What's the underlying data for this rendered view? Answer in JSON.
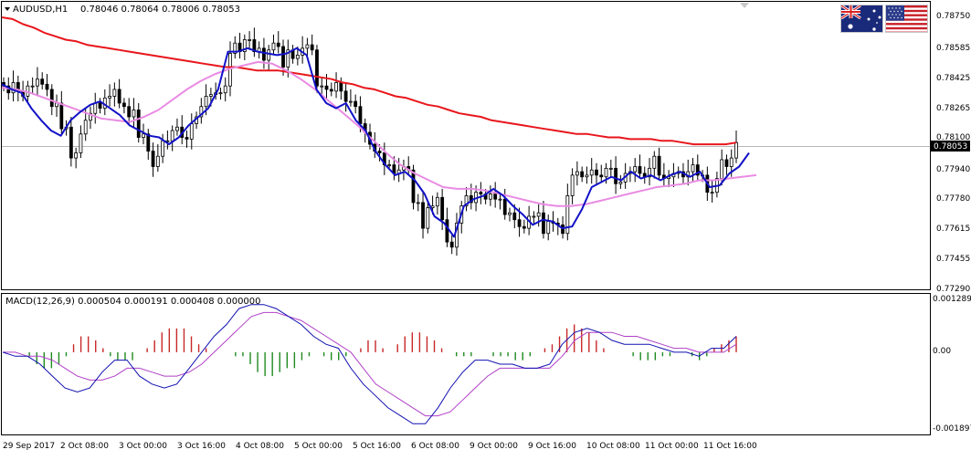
{
  "header": {
    "symbol_label": "AUDUSD,H1",
    "ohlc_text": "0.78046 0.78064 0.78006 0.78053",
    "macd_label": "MACD(12,26,9) 0.000504 0.000191 0.000408 0.000000"
  },
  "colors": {
    "ma_slow": "#e8161c",
    "ma_mid": "#e98be3",
    "ma_fast": "#1111c8",
    "candles": "#000000",
    "macd_line": "#1010b0",
    "signal_line": "#b040c8",
    "hist_pos": "#c82828",
    "hist_neg": "#1f8a1f"
  },
  "icons": {
    "flag_left": "australia-flag-icon",
    "flag_right": "usa-flag-icon"
  },
  "chart_data": [
    {
      "type": "candlestick",
      "title": "AUDUSD,H1",
      "y_ticks": [
        "0.78750",
        "0.78585",
        "0.78425",
        "0.78265",
        "0.78100",
        "0.77940",
        "0.77780",
        "0.77615",
        "0.77455",
        "0.77290"
      ],
      "ylim": [
        0.7721,
        0.7886
      ],
      "current_price": "0.78053",
      "x_labels": [
        "29 Sep 2017",
        "2 Oct 08:00",
        "3 Oct 00:00",
        "3 Oct 16:00",
        "4 Oct 08:00",
        "5 Oct 00:00",
        "5 Oct 16:00",
        "6 Oct 08:00",
        "9 Oct 00:00",
        "9 Oct 16:00",
        "10 Oct 08:00",
        "11 Oct 00:00",
        "11 Oct 16:00"
      ],
      "closes": [
        0.7838,
        0.7834,
        0.784,
        0.7835,
        0.7832,
        0.7838,
        0.7838,
        0.7842,
        0.7839,
        0.7836,
        0.7826,
        0.7828,
        0.7813,
        0.7814,
        0.7796,
        0.7799,
        0.781,
        0.7818,
        0.7822,
        0.7828,
        0.7825,
        0.7831,
        0.7832,
        0.7836,
        0.7828,
        0.7826,
        0.782,
        0.7824,
        0.7808,
        0.781,
        0.78,
        0.7791,
        0.7797,
        0.7806,
        0.7806,
        0.7812,
        0.7814,
        0.7808,
        0.7807,
        0.7816,
        0.782,
        0.7826,
        0.7832,
        0.7833,
        0.7834,
        0.7834,
        0.7838,
        0.7857,
        0.7863,
        0.7858,
        0.7865,
        0.7865,
        0.7858,
        0.786,
        0.7853,
        0.7859,
        0.7863,
        0.7861,
        0.7849,
        0.7859,
        0.7854,
        0.7856,
        0.786,
        0.7862,
        0.7859,
        0.7838,
        0.7838,
        0.7836,
        0.7835,
        0.784,
        0.7835,
        0.7829,
        0.7829,
        0.7826,
        0.7816,
        0.7811,
        0.7804,
        0.78,
        0.7799,
        0.7792,
        0.7792,
        0.7787,
        0.7789,
        0.7791,
        0.7789,
        0.777,
        0.777,
        0.7755,
        0.7767,
        0.7768,
        0.7773,
        0.776,
        0.7747,
        0.7744,
        0.7758,
        0.7768,
        0.7774,
        0.777,
        0.7776,
        0.7775,
        0.7772,
        0.7775,
        0.7772,
        0.7772,
        0.7763,
        0.7764,
        0.776,
        0.7756,
        0.7755,
        0.7762,
        0.7762,
        0.7764,
        0.7752,
        0.7759,
        0.7758,
        0.7757,
        0.7752,
        0.7774,
        0.7786,
        0.7788,
        0.7785,
        0.7786,
        0.7789,
        0.7786,
        0.7785,
        0.779,
        0.779,
        0.7781,
        0.7782,
        0.7787,
        0.7788,
        0.7791,
        0.7787,
        0.7785,
        0.779,
        0.7797,
        0.7786,
        0.7784,
        0.7785,
        0.7787,
        0.7788,
        0.7785,
        0.7788,
        0.7792,
        0.7786,
        0.7786,
        0.7776,
        0.7776,
        0.7784,
        0.7795,
        0.7791,
        0.7796,
        0.7805
      ],
      "series": [
        {
          "name": "MA slow",
          "values": [
            0.7878,
            0.7877,
            0.7874,
            0.7872,
            0.7869,
            0.7867,
            0.7865,
            0.7864,
            0.7862,
            0.7861,
            0.786,
            0.7859,
            0.7858,
            0.7857,
            0.7856,
            0.7855,
            0.7854,
            0.7853,
            0.7852,
            0.7851,
            0.785,
            0.7849,
            0.7849,
            0.7848,
            0.7847,
            0.7847,
            0.7847,
            0.7846,
            0.7845,
            0.7844,
            0.7843,
            0.7842,
            0.784,
            0.7839,
            0.7837,
            0.7836,
            0.7834,
            0.7832,
            0.7831,
            0.7829,
            0.7827,
            0.7826,
            0.7824,
            0.7822,
            0.7821,
            0.782,
            0.7818,
            0.7817,
            0.7816,
            0.7815,
            0.7814,
            0.7813,
            0.7812,
            0.7811,
            0.781,
            0.781,
            0.7809,
            0.7808,
            0.7808,
            0.7807,
            0.7807,
            0.7807,
            0.7806,
            0.7806,
            0.7805,
            0.7804,
            0.7804,
            0.7804,
            0.7804,
            0.7805
          ]
        },
        {
          "name": "MA mid",
          "values": [
            0.7837,
            0.7836,
            0.7834,
            0.7831,
            0.7828,
            0.7825,
            0.7822,
            0.7819,
            0.7818,
            0.7817,
            0.782,
            0.7824,
            0.783,
            0.7836,
            0.7841,
            0.7845,
            0.7848,
            0.785,
            0.7852,
            0.7851,
            0.7847,
            0.7842,
            0.7836,
            0.7829,
            0.7822,
            0.7815,
            0.7807,
            0.7799,
            0.7792,
            0.7787,
            0.7783,
            0.7779,
            0.7778,
            0.7778,
            0.7777,
            0.7775,
            0.7773,
            0.7771,
            0.7769,
            0.7768,
            0.7768,
            0.7769,
            0.7771,
            0.7773,
            0.7775,
            0.7777,
            0.7779,
            0.778,
            0.7781,
            0.7783,
            0.7783,
            0.7784,
            0.7785,
            0.7786
          ]
        },
        {
          "name": "MA fast",
          "values": [
            0.7839,
            0.7836,
            0.7834,
            0.7825,
            0.7818,
            0.7812,
            0.7809,
            0.7818,
            0.7823,
            0.7827,
            0.7829,
            0.7825,
            0.7821,
            0.7815,
            0.7812,
            0.7809,
            0.7808,
            0.7804,
            0.7808,
            0.7815,
            0.782,
            0.7825,
            0.7836,
            0.7858,
            0.7858,
            0.786,
            0.7858,
            0.7857,
            0.7856,
            0.7857,
            0.786,
            0.7856,
            0.7836,
            0.7828,
            0.7825,
            0.7828,
            0.7818,
            0.7812,
            0.78,
            0.7792,
            0.7786,
            0.7788,
            0.7783,
            0.7775,
            0.7762,
            0.7758,
            0.775,
            0.7768,
            0.7772,
            0.7774,
            0.7778,
            0.7774,
            0.7768,
            0.7763,
            0.7757,
            0.776,
            0.7759,
            0.7755,
            0.7756,
            0.7766,
            0.7779,
            0.7782,
            0.7785,
            0.7783,
            0.7788,
            0.7784,
            0.7786,
            0.7783,
            0.7786,
            0.7788,
            0.7785,
            0.7788,
            0.7779,
            0.778,
            0.7787,
            0.7791,
            0.7799
          ]
        }
      ]
    },
    {
      "type": "macd",
      "title": "MACD(12,26,9)",
      "y_ticks": [
        "0.001289",
        "0.00",
        "-0.001897"
      ],
      "ylim": [
        -0.002,
        0.0014
      ],
      "macd": [
        0,
        -0.0001,
        -0.0001,
        -0.0003,
        -0.0006,
        -0.0009,
        -0.001,
        -0.0009,
        -0.0005,
        -0.0002,
        -0.0002,
        -0.0006,
        -0.0008,
        -0.0009,
        -0.0008,
        -0.0004,
        0,
        0.0004,
        0.0007,
        0.0011,
        0.0012,
        0.0012,
        0.0011,
        0.0009,
        0.0007,
        0.0004,
        0.0002,
        0.0001,
        -0.0004,
        -0.0008,
        -0.0011,
        -0.0014,
        -0.0016,
        -0.0018,
        -0.0018,
        -0.0014,
        -0.0009,
        -0.0005,
        -0.0002,
        -0.0002,
        -0.0003,
        -0.0003,
        -0.0004,
        -0.0004,
        -0.0003,
        0.0002,
        0.0005,
        0.0006,
        0.0005,
        0.0003,
        0.0002,
        0.0002,
        0.0002,
        0.0001,
        0,
        0,
        -0.0001,
        0.0001,
        0.0001,
        0.0004
      ],
      "signal": [
        0,
        0,
        -0.0001,
        -0.0001,
        -0.0002,
        -0.0004,
        -0.0006,
        -0.0007,
        -0.0007,
        -0.0006,
        -0.0004,
        -0.0004,
        -0.0005,
        -0.0006,
        -0.0006,
        -0.0005,
        -0.0003,
        0,
        0.0003,
        0.0006,
        0.0009,
        0.001,
        0.001,
        0.0009,
        0.0008,
        0.0006,
        0.0004,
        0.0002,
        0,
        -0.0004,
        -0.0008,
        -0.001,
        -0.0012,
        -0.0014,
        -0.0016,
        -0.0016,
        -0.0015,
        -0.0012,
        -0.0009,
        -0.0006,
        -0.0004,
        -0.0004,
        -0.0004,
        -0.0004,
        -0.0004,
        -0.0001,
        0.0003,
        0.0005,
        0.0005,
        0.0005,
        0.0004,
        0.0004,
        0.0003,
        0.0002,
        0.0001,
        0.0001,
        0,
        0,
        0,
        0.0002
      ],
      "histogram": [
        0,
        0,
        0,
        -0.0001,
        -0.0003,
        -0.0004,
        -0.0004,
        -0.0003,
        -0.0001,
        0.0002,
        0.0004,
        0.0004,
        0.0003,
        0.0001,
        -0.0001,
        -0.0002,
        -0.0002,
        -0.0002,
        0,
        0.0001,
        0.0003,
        0.0005,
        0.0006,
        0.0006,
        0.0006,
        0.0004,
        0.0002,
        0.0001,
        0,
        0,
        0,
        -0.0001,
        -0.0001,
        -0.0003,
        -0.0005,
        -0.0006,
        -0.0006,
        -0.0005,
        -0.0004,
        -0.0004,
        -0.0002,
        -0.0001,
        0,
        -0.0001,
        -0.0002,
        -0.0002,
        -0.0001,
        0,
        0.0001,
        0.0003,
        0.0003,
        0.0001,
        0,
        0.0002,
        0.0004,
        0.0005,
        0.0005,
        0.0004,
        0.0003,
        0.0001,
        0,
        -0.0001,
        -0.0001,
        -0.0001,
        0,
        0,
        -0.0001,
        -0.0001,
        -0.0001,
        -0.0002,
        -0.0002,
        -0.0001,
        0,
        0.0001,
        0.0002,
        0.0004,
        0.0006,
        0.0007,
        0.0006,
        0.0005,
        0.0003,
        0.0001,
        0,
        0,
        0,
        -0.0001,
        -0.0002,
        -0.0002,
        -0.0002,
        -0.0001,
        -0.0001,
        0,
        0,
        -0.0001,
        -0.0002,
        -0.0001,
        0.0001,
        0.0002,
        0.0003,
        0.0004
      ]
    }
  ]
}
